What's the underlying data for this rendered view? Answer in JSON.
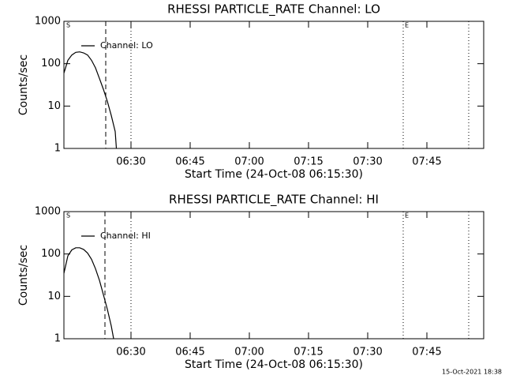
{
  "chart_data": [
    {
      "type": "line",
      "title": "RHESSI PARTICLE_RATE Channel: LO",
      "xlabel": "Start Time (24-Oct-08 06:15:30)",
      "ylabel": "Counts/sec",
      "x": [
        13,
        14,
        15,
        16,
        17,
        18,
        19,
        20,
        21,
        22,
        23,
        24,
        25,
        26,
        26.3
      ],
      "series": [
        {
          "name": "Channel: LO",
          "color": "#000000",
          "values": [
            60,
            120,
            160,
            185,
            190,
            180,
            160,
            120,
            80,
            45,
            25,
            13,
            6,
            2.5,
            1
          ]
        }
      ],
      "xlim": [
        13,
        119.4
      ],
      "xticks": [
        {
          "value": 30,
          "label": "06:30"
        },
        {
          "value": 45,
          "label": "06:45"
        },
        {
          "value": 60,
          "label": "07:00"
        },
        {
          "value": 75,
          "label": "07:15"
        },
        {
          "value": 90,
          "label": "07:30"
        },
        {
          "value": 105,
          "label": "07:45"
        }
      ],
      "ylim": [
        1,
        1000
      ],
      "yticks": [
        1,
        10,
        100,
        1000
      ],
      "ylog": true,
      "markers": [
        {
          "x": 23.6,
          "style": "dashed"
        },
        {
          "x": 30,
          "style": "dotted"
        },
        {
          "x": 99,
          "style": "dotted"
        },
        {
          "x": 115.6,
          "style": "dotted"
        }
      ],
      "annotations": [
        {
          "text": "S",
          "x": 13.6
        },
        {
          "text": "E",
          "x": 99.4
        }
      ]
    },
    {
      "type": "line",
      "title": "RHESSI PARTICLE_RATE Channel: HI",
      "xlabel": "Start Time (24-Oct-08 06:15:30)",
      "ylabel": "Counts/sec",
      "x": [
        13,
        14,
        15,
        16,
        17,
        18,
        19,
        20,
        21,
        22,
        23,
        24,
        25,
        25.6
      ],
      "series": [
        {
          "name": "Channel: HI",
          "color": "#000000",
          "values": [
            35,
            90,
            125,
            140,
            140,
            128,
            105,
            75,
            45,
            24,
            11,
            5,
            2,
            1
          ]
        }
      ],
      "xlim": [
        13,
        119.4
      ],
      "xticks": [
        {
          "value": 30,
          "label": "06:30"
        },
        {
          "value": 45,
          "label": "06:45"
        },
        {
          "value": 60,
          "label": "07:00"
        },
        {
          "value": 75,
          "label": "07:15"
        },
        {
          "value": 90,
          "label": "07:30"
        },
        {
          "value": 105,
          "label": "07:45"
        }
      ],
      "ylim": [
        1,
        1000
      ],
      "yticks": [
        1,
        10,
        100,
        1000
      ],
      "ylog": true,
      "markers": [
        {
          "x": 23.4,
          "style": "dashed"
        },
        {
          "x": 30,
          "style": "dotted"
        },
        {
          "x": 99,
          "style": "dotted"
        },
        {
          "x": 115.6,
          "style": "dotted"
        }
      ],
      "annotations": [
        {
          "text": "S",
          "x": 13.6
        },
        {
          "text": "E",
          "x": 99.4
        }
      ]
    }
  ],
  "timestamp": "15-Oct-2021 18:38"
}
